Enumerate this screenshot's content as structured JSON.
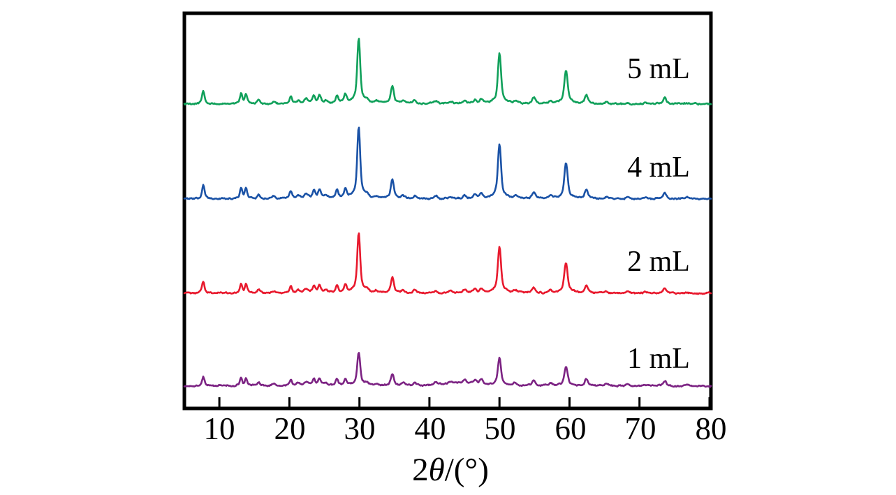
{
  "chart_data": {
    "type": "line",
    "title": "",
    "xlabel": "2θ/(°)",
    "xlabel_parts": {
      "prefix": "2",
      "theta": "θ",
      "suffix": "/(°)"
    },
    "ylabel": "",
    "x_range": [
      5,
      80.2
    ],
    "x_ticks": [
      10,
      20,
      30,
      40,
      50,
      60,
      70,
      80
    ],
    "x_tick_labels": [
      "10",
      "20",
      "30",
      "40",
      "50",
      "60",
      "70",
      "80"
    ],
    "grid": false,
    "legend_position": "labels-right-inside",
    "frame_color": "#000000",
    "label_color": "#000000",
    "series": [
      {
        "label": "5 mL",
        "color": "#10A05A",
        "relative_scale": 0.92,
        "gamma": 1.0
      },
      {
        "label": "4 mL",
        "color": "#1A52A6",
        "relative_scale": 1.0,
        "gamma": 1.0
      },
      {
        "label": "2 mL",
        "color": "#E8192D",
        "relative_scale": 0.84,
        "gamma": 1.0
      },
      {
        "label": "1 mL",
        "color": "#7C2383",
        "relative_scale": 0.47,
        "gamma": 0.78,
        "humps": [
          [
            44.8,
            9,
            3.5
          ]
        ]
      }
    ],
    "peaks_2theta_intensity_width": [
      [
        7.7,
        20,
        0.22
      ],
      [
        13.1,
        15,
        0.2
      ],
      [
        13.8,
        15,
        0.2
      ],
      [
        15.6,
        6,
        0.22
      ],
      [
        17.8,
        3,
        0.3
      ],
      [
        20.2,
        11,
        0.22
      ],
      [
        21.3,
        4,
        0.3
      ],
      [
        22.4,
        6,
        0.38
      ],
      [
        23.5,
        11,
        0.24
      ],
      [
        24.3,
        12,
        0.24
      ],
      [
        25.2,
        4,
        0.3
      ],
      [
        26.8,
        12,
        0.22
      ],
      [
        28.0,
        13,
        0.22
      ],
      [
        29.9,
        100,
        0.26
      ],
      [
        31.1,
        4,
        0.3
      ],
      [
        32.4,
        3,
        0.3
      ],
      [
        34.7,
        27,
        0.26
      ],
      [
        36.2,
        4,
        0.3
      ],
      [
        37.9,
        5,
        0.3
      ],
      [
        40.9,
        4,
        0.3
      ],
      [
        43.0,
        3,
        0.35
      ],
      [
        45.0,
        5,
        0.3
      ],
      [
        46.5,
        6,
        0.28
      ],
      [
        47.4,
        7,
        0.28
      ],
      [
        50.0,
        78,
        0.28
      ],
      [
        52.3,
        4,
        0.3
      ],
      [
        54.9,
        9,
        0.28
      ],
      [
        57.3,
        4,
        0.3
      ],
      [
        59.5,
        50,
        0.3
      ],
      [
        62.4,
        13,
        0.28
      ],
      [
        65.3,
        3,
        0.3
      ],
      [
        68.3,
        2,
        0.3
      ],
      [
        70.9,
        2,
        0.3
      ],
      [
        73.6,
        9,
        0.3
      ],
      [
        76.8,
        2,
        0.3
      ]
    ]
  }
}
